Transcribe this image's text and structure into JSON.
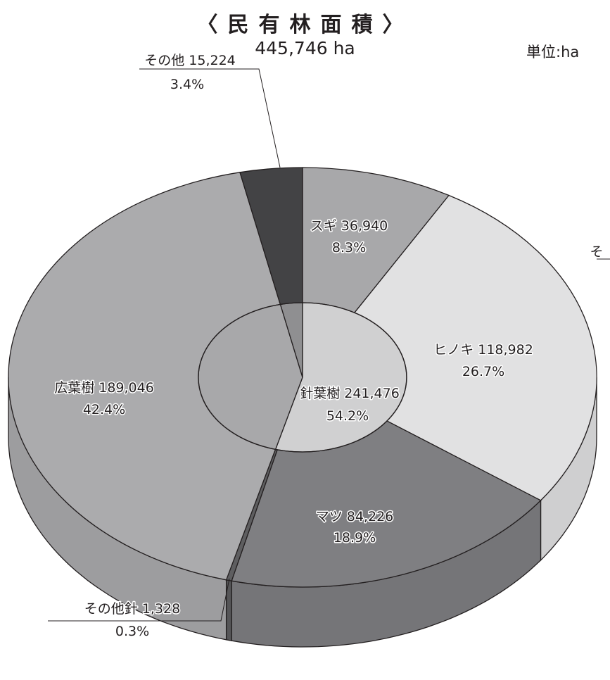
{
  "title": "〈民有林面積〉",
  "total": "445,746  ha",
  "unit": "単位:ha",
  "chart_data": {
    "type": "pie",
    "title": "〈民有林面積〉",
    "total": "445,746 ha",
    "unit": "単位:ha",
    "outer_ring": [
      {
        "name": "スギ",
        "value": 36940,
        "value_label": "36,940",
        "percent": "8.3%",
        "color": "#a8a8aa"
      },
      {
        "name": "ヒノキ",
        "value": 118982,
        "value_label": "118,982",
        "percent": "26.7%",
        "color": "#e1e1e2"
      },
      {
        "name": "マツ",
        "value": 84226,
        "value_label": "84,226",
        "percent": "18.9%",
        "color": "#7f7f82"
      },
      {
        "name": "その他針",
        "value": 1328,
        "value_label": "1,328",
        "percent": "0.3%",
        "color": "#5e5e60"
      },
      {
        "name": "広葉樹",
        "value": 189046,
        "value_label": "189,046",
        "percent": "42.4%",
        "color": "#ababad"
      },
      {
        "name": "その他",
        "value": 15224,
        "value_label": "15,224",
        "percent": "3.4%",
        "color": "#434345"
      }
    ],
    "inner_ring": [
      {
        "name": "針葉樹",
        "value": 241476,
        "value_label": "241,476",
        "percent": "54.2%",
        "color": "#d0d0d1"
      },
      {
        "name": "広葉樹",
        "value": 189046,
        "color": "#a8a8aa"
      },
      {
        "name": "その他",
        "value": 15224,
        "color": "#8f8f91"
      }
    ]
  }
}
